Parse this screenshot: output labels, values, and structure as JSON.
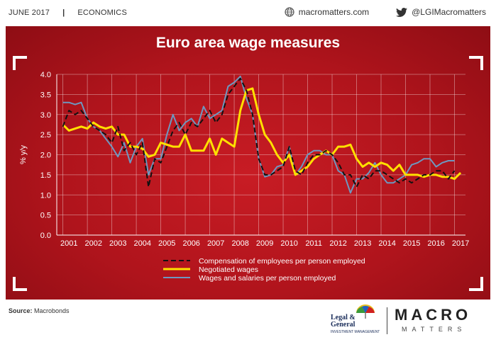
{
  "header": {
    "date": "JUNE  2017",
    "separator": "|",
    "section": "ECONOMICS",
    "website": "macromatters.com",
    "twitter": "@LGIMacromatters"
  },
  "colors": {
    "panel": "#b0141c",
    "compensation": "#111111",
    "negotiated": "#ffe000",
    "wages": "#6e98c0"
  },
  "chart_data": {
    "type": "line",
    "title": "Euro area wage measures",
    "ylabel": "% y/y",
    "xlabel": "",
    "xlim": [
      2000.5,
      2017.2
    ],
    "ylim": [
      0.0,
      4.0
    ],
    "yticks": [
      "0.0",
      "0.5",
      "1.0",
      "1.5",
      "2.0",
      "2.5",
      "3.0",
      "3.5",
      "4.0"
    ],
    "xticks": [
      "2001",
      "2002",
      "2003",
      "2004",
      "2005",
      "2006",
      "2007",
      "2008",
      "2009",
      "2010",
      "2011",
      "2012",
      "2013",
      "2014",
      "2015",
      "2016",
      "2017"
    ],
    "grid": true,
    "legend_position": "bottom-center",
    "series": [
      {
        "name": "Compensation of employees per person employed",
        "style": "dashed",
        "color": "#111111",
        "x": [
          2000.75,
          2001.0,
          2001.25,
          2001.5,
          2001.75,
          2002.0,
          2002.25,
          2002.5,
          2002.75,
          2003.0,
          2003.25,
          2003.5,
          2003.75,
          2004.0,
          2004.25,
          2004.5,
          2004.75,
          2005.0,
          2005.25,
          2005.5,
          2005.75,
          2006.0,
          2006.25,
          2006.5,
          2006.75,
          2007.0,
          2007.25,
          2007.5,
          2007.75,
          2008.0,
          2008.25,
          2008.5,
          2008.75,
          2009.0,
          2009.25,
          2009.5,
          2009.75,
          2010.0,
          2010.25,
          2010.5,
          2010.75,
          2011.0,
          2011.25,
          2011.5,
          2011.75,
          2012.0,
          2012.25,
          2012.5,
          2012.75,
          2013.0,
          2013.25,
          2013.5,
          2013.75,
          2014.0,
          2014.25,
          2014.5,
          2014.75,
          2015.0,
          2015.25,
          2015.5,
          2015.75,
          2016.0,
          2016.25,
          2016.5,
          2016.75
        ],
        "values": [
          2.7,
          3.1,
          3.0,
          3.1,
          2.9,
          2.7,
          2.6,
          2.5,
          2.3,
          2.7,
          2.1,
          2.3,
          2.0,
          2.3,
          1.2,
          1.9,
          1.8,
          2.2,
          2.6,
          2.8,
          2.5,
          2.8,
          2.7,
          2.9,
          3.1,
          2.8,
          3.0,
          3.5,
          3.7,
          3.9,
          3.6,
          3.0,
          1.9,
          1.5,
          1.5,
          1.6,
          1.7,
          2.2,
          1.6,
          1.5,
          1.8,
          2.0,
          2.0,
          2.1,
          2.0,
          1.8,
          1.5,
          1.5,
          1.2,
          1.5,
          1.4,
          1.6,
          1.6,
          1.5,
          1.4,
          1.3,
          1.4,
          1.3,
          1.4,
          1.5,
          1.5,
          1.6,
          1.6,
          1.4,
          1.6
        ]
      },
      {
        "name": "Negotiated wages",
        "style": "solid",
        "color": "#ffe000",
        "x": [
          2000.75,
          2001.0,
          2001.25,
          2001.5,
          2001.75,
          2002.0,
          2002.25,
          2002.5,
          2002.75,
          2003.0,
          2003.25,
          2003.5,
          2003.75,
          2004.0,
          2004.25,
          2004.5,
          2004.75,
          2005.0,
          2005.25,
          2005.5,
          2005.75,
          2006.0,
          2006.25,
          2006.5,
          2006.75,
          2007.0,
          2007.25,
          2007.5,
          2007.75,
          2008.0,
          2008.25,
          2008.5,
          2008.75,
          2009.0,
          2009.25,
          2009.5,
          2009.75,
          2010.0,
          2010.25,
          2010.5,
          2010.75,
          2011.0,
          2011.25,
          2011.5,
          2011.75,
          2012.0,
          2012.25,
          2012.5,
          2012.75,
          2013.0,
          2013.25,
          2013.5,
          2013.75,
          2014.0,
          2014.25,
          2014.5,
          2014.75,
          2015.0,
          2015.25,
          2015.5,
          2015.75,
          2016.0,
          2016.25,
          2016.5,
          2016.75,
          2017.0
        ],
        "values": [
          2.75,
          2.6,
          2.65,
          2.7,
          2.65,
          2.8,
          2.7,
          2.65,
          2.7,
          2.5,
          2.5,
          2.2,
          2.2,
          2.15,
          1.95,
          2.0,
          2.3,
          2.25,
          2.2,
          2.2,
          2.5,
          2.1,
          2.1,
          2.1,
          2.4,
          2.0,
          2.4,
          2.3,
          2.2,
          3.1,
          3.6,
          3.65,
          3.0,
          2.5,
          2.3,
          2.0,
          1.8,
          2.0,
          1.5,
          1.6,
          1.7,
          1.9,
          2.0,
          2.1,
          2.0,
          2.2,
          2.2,
          2.25,
          1.9,
          1.7,
          1.8,
          1.7,
          1.8,
          1.75,
          1.6,
          1.75,
          1.5,
          1.5,
          1.5,
          1.45,
          1.5,
          1.5,
          1.45,
          1.45,
          1.4,
          1.55
        ]
      },
      {
        "name": "Wages and salaries per person employed",
        "style": "solid",
        "color": "#6e98c0",
        "x": [
          2000.75,
          2001.0,
          2001.25,
          2001.5,
          2001.75,
          2002.0,
          2002.25,
          2002.5,
          2002.75,
          2003.0,
          2003.25,
          2003.5,
          2003.75,
          2004.0,
          2004.25,
          2004.5,
          2004.75,
          2005.0,
          2005.25,
          2005.5,
          2005.75,
          2006.0,
          2006.25,
          2006.5,
          2006.75,
          2007.0,
          2007.25,
          2007.5,
          2007.75,
          2008.0,
          2008.25,
          2008.5,
          2008.75,
          2009.0,
          2009.25,
          2009.5,
          2009.75,
          2010.0,
          2010.25,
          2010.5,
          2010.75,
          2011.0,
          2011.25,
          2011.5,
          2011.75,
          2012.0,
          2012.25,
          2012.5,
          2012.75,
          2013.0,
          2013.25,
          2013.5,
          2013.75,
          2014.0,
          2014.25,
          2014.5,
          2014.75,
          2015.0,
          2015.25,
          2015.5,
          2015.75,
          2016.0,
          2016.25,
          2016.5,
          2016.75
        ],
        "values": [
          3.3,
          3.3,
          3.25,
          3.3,
          2.9,
          2.7,
          2.6,
          2.4,
          2.2,
          1.95,
          2.3,
          1.8,
          2.2,
          2.4,
          1.5,
          1.9,
          1.9,
          2.5,
          3.0,
          2.6,
          2.8,
          2.9,
          2.7,
          3.2,
          2.9,
          3.0,
          3.1,
          3.7,
          3.8,
          3.95,
          3.4,
          3.0,
          1.9,
          1.45,
          1.5,
          1.7,
          1.75,
          2.2,
          1.5,
          1.7,
          2.0,
          2.1,
          2.1,
          2.0,
          2.0,
          1.6,
          1.5,
          1.05,
          1.4,
          1.4,
          1.55,
          1.8,
          1.5,
          1.3,
          1.3,
          1.4,
          1.5,
          1.75,
          1.8,
          1.9,
          1.9,
          1.7,
          1.8,
          1.85,
          1.85
        ]
      }
    ]
  },
  "footer": {
    "source_label": "Source:",
    "source_value": "Macrobonds",
    "lg_name_1": "Legal &",
    "lg_name_2": "General",
    "lg_sub": "INVESTMENT MANAGEMENT",
    "brand": "MACRO",
    "brand_sub": "MATTERS"
  }
}
